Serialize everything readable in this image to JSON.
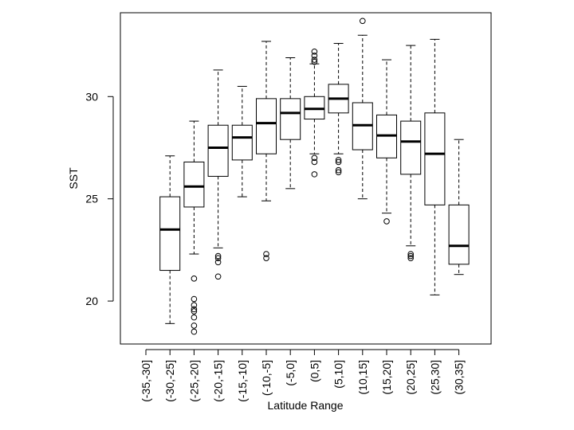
{
  "chart_data": {
    "type": "box",
    "xlabel": "Latitude Range",
    "ylabel": "SST",
    "ylim": [
      17.9,
      34.1
    ],
    "yticks": [
      20,
      25,
      30
    ],
    "grid": false,
    "legend": "none",
    "categories": [
      "(-35,-30]",
      "(-30,-25]",
      "(-25,-20]",
      "(-20,-15]",
      "(-15,-10]",
      "(-10,-5]",
      "(-5,0]",
      "(0,5]",
      "(5,10]",
      "(10,15]",
      "(15,20]",
      "(20,25]",
      "(25,30]",
      "(30,35]"
    ],
    "boxes": [
      null,
      {
        "min": 18.9,
        "q1": 21.5,
        "median": 23.5,
        "q3": 25.1,
        "max": 27.1,
        "outliers": []
      },
      {
        "min": 22.3,
        "q1": 24.6,
        "median": 25.6,
        "q3": 26.8,
        "max": 28.8,
        "outliers": [
          21.1,
          20.1,
          19.8,
          19.6,
          19.5,
          19.2,
          18.8,
          18.5
        ]
      },
      {
        "min": 22.6,
        "q1": 26.1,
        "median": 27.5,
        "q3": 28.6,
        "max": 31.3,
        "outliers": [
          22.2,
          22.1,
          21.9,
          21.2
        ]
      },
      {
        "min": 25.1,
        "q1": 26.9,
        "median": 28.0,
        "q3": 28.6,
        "max": 30.5,
        "outliers": []
      },
      {
        "min": 24.9,
        "q1": 27.2,
        "median": 28.7,
        "q3": 29.9,
        "max": 32.7,
        "outliers": [
          22.3,
          22.1
        ]
      },
      {
        "min": 25.5,
        "q1": 27.9,
        "median": 29.2,
        "q3": 29.9,
        "max": 31.9,
        "outliers": []
      },
      {
        "min": 27.2,
        "q1": 28.9,
        "median": 29.4,
        "q3": 30.0,
        "max": 31.6,
        "outliers": [
          32.2,
          32.0,
          31.8,
          31.7,
          27.0,
          26.8,
          26.2
        ]
      },
      {
        "min": 27.2,
        "q1": 29.2,
        "median": 29.9,
        "q3": 30.6,
        "max": 32.6,
        "outliers": [
          26.9,
          26.8,
          26.4,
          26.3
        ]
      },
      {
        "min": 25.0,
        "q1": 27.4,
        "median": 28.6,
        "q3": 29.7,
        "max": 33.0,
        "outliers": [
          33.7
        ]
      },
      {
        "min": 24.3,
        "q1": 27.0,
        "median": 28.1,
        "q3": 29.1,
        "max": 31.8,
        "outliers": [
          23.9
        ]
      },
      {
        "min": 22.7,
        "q1": 26.2,
        "median": 27.8,
        "q3": 28.8,
        "max": 32.5,
        "outliers": [
          22.3,
          22.2,
          22.1
        ]
      },
      {
        "min": 20.3,
        "q1": 24.7,
        "median": 27.2,
        "q3": 29.2,
        "max": 32.8,
        "outliers": []
      },
      {
        "min": 21.3,
        "q1": 21.8,
        "median": 22.7,
        "q3": 24.7,
        "max": 27.9,
        "outliers": []
      }
    ]
  }
}
